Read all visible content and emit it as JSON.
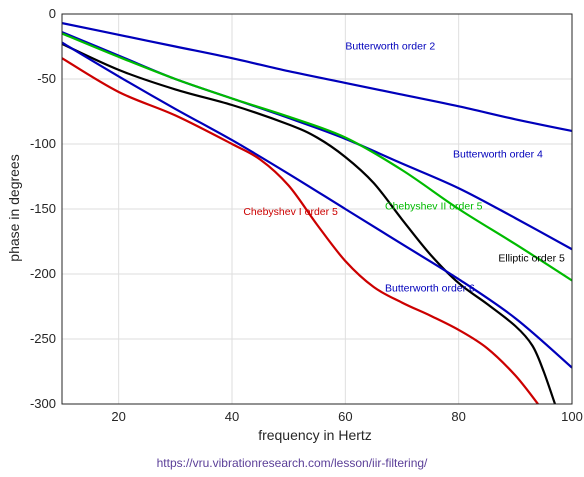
{
  "chart_data": {
    "type": "line",
    "xlabel": "frequency in Hertz",
    "ylabel": "phase in degrees",
    "xlim": [
      10,
      100
    ],
    "ylim": [
      -300,
      0
    ],
    "xticks": [
      20,
      40,
      60,
      80,
      100
    ],
    "yticks": [
      0,
      -50,
      -100,
      -150,
      -200,
      -250,
      -300
    ],
    "grid": true,
    "series": [
      {
        "name": "Butterworth order 2",
        "color": "#0000bb",
        "x": [
          10,
          20,
          30,
          40,
          50,
          60,
          70,
          80,
          90,
          100
        ],
        "y": [
          -7,
          -16,
          -25,
          -34,
          -44,
          -53,
          -62,
          -71,
          -81,
          -90
        ]
      },
      {
        "name": "Butterworth order 4",
        "color": "#0000bb",
        "x": [
          10,
          20,
          30,
          40,
          50,
          60,
          70,
          80,
          90,
          100
        ],
        "y": [
          -14,
          -32,
          -50,
          -65,
          -80,
          -96,
          -115,
          -134,
          -157,
          -181
        ]
      },
      {
        "name": "Chebyshev II order 5",
        "color": "#00bb00",
        "x": [
          10,
          20,
          30,
          40,
          50,
          60,
          70,
          80,
          90,
          100
        ],
        "y": [
          -15,
          -33,
          -50,
          -65,
          -79,
          -95,
          -120,
          -150,
          -177,
          -205
        ]
      },
      {
        "name": "Elliptic order 5",
        "color": "#000000",
        "x": [
          10,
          20,
          30,
          40,
          50,
          55,
          60,
          65,
          70,
          75,
          80,
          85,
          90,
          93,
          95,
          97
        ],
        "y": [
          -23,
          -43,
          -58,
          -70,
          -85,
          -95,
          -110,
          -130,
          -158,
          -185,
          -207,
          -223,
          -240,
          -255,
          -275,
          -300
        ]
      },
      {
        "name": "Butterworth order 6",
        "color": "#0000bb",
        "x": [
          10,
          20,
          30,
          40,
          50,
          60,
          70,
          80,
          90,
          100
        ],
        "y": [
          -22,
          -48,
          -73,
          -97,
          -123,
          -150,
          -177,
          -204,
          -234,
          -272
        ]
      },
      {
        "name": "Chebyshev I order 5",
        "color": "#cc0000",
        "x": [
          10,
          20,
          30,
          40,
          45,
          50,
          55,
          60,
          65,
          70,
          75,
          80,
          85,
          90,
          94
        ],
        "y": [
          -34,
          -60,
          -78,
          -100,
          -112,
          -132,
          -162,
          -190,
          -210,
          -222,
          -232,
          -243,
          -257,
          -278,
          -300
        ]
      }
    ],
    "labels": [
      {
        "text": "Butterworth order 2",
        "color": "#0000bb",
        "x": 60,
        "y": -49
      },
      {
        "text": "Butterworth order 4",
        "color": "#0000bb",
        "x": 79,
        "y": -32,
        "y_abs": -132
      },
      {
        "text": "Chebyshev II order 5",
        "color": "#00bb00",
        "x": 67,
        "y": -172
      },
      {
        "text": "Elliptic order 5",
        "color": "#000000",
        "x": 87,
        "y": -212
      },
      {
        "text": "Butterworth order 6",
        "color": "#0000bb",
        "x": 67,
        "y": -235
      },
      {
        "text": "Chebyshev I order 5",
        "color": "#cc0000",
        "x": 42,
        "y": -176
      }
    ]
  },
  "source_url": "https://vru.vibrationresearch.com/lesson/iir-filtering/"
}
